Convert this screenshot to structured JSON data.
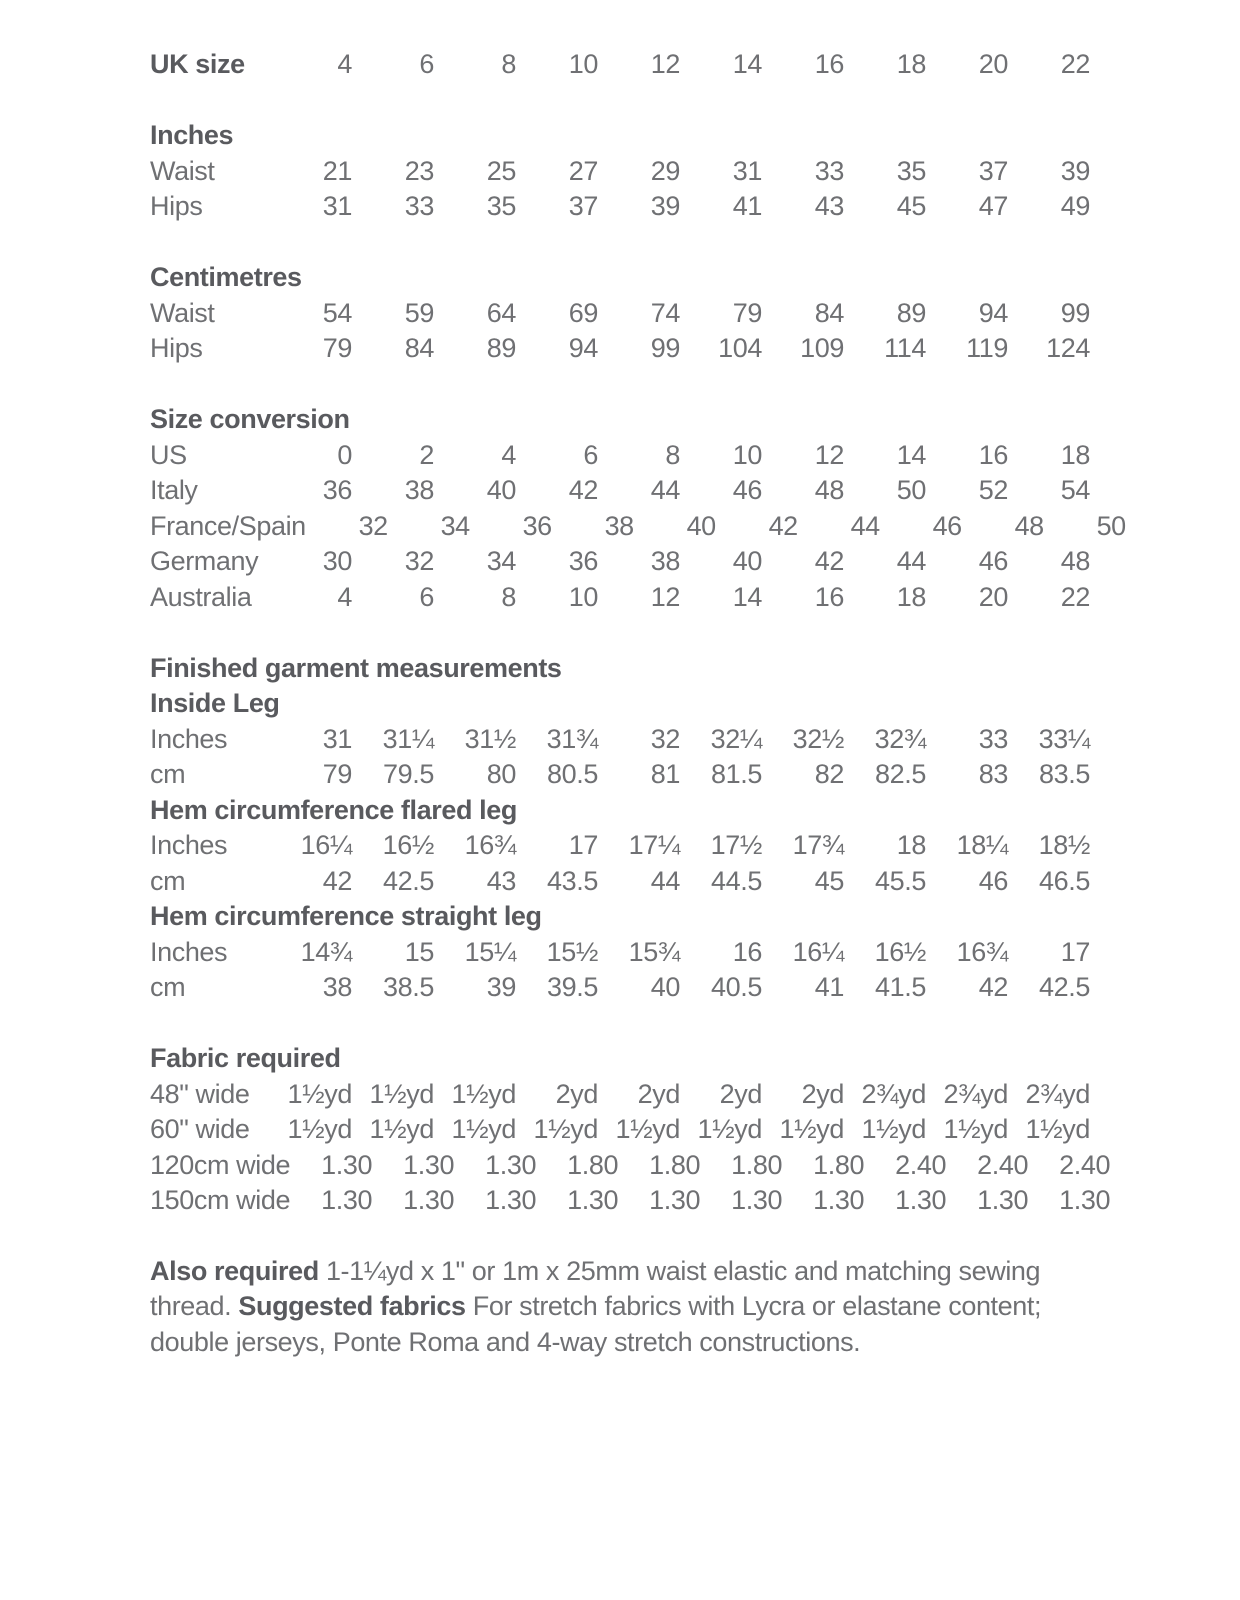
{
  "page": {
    "background_color": "#ffffff",
    "text_color": "#6f7073",
    "heading_color": "#595a5e"
  },
  "size_chart": {
    "columns": 10,
    "rows": [
      {
        "kind": "values",
        "label": "UK size",
        "bold": true,
        "values": [
          "4",
          "6",
          "8",
          "10",
          "12",
          "14",
          "16",
          "18",
          "20",
          "22"
        ]
      },
      {
        "kind": "gap"
      },
      {
        "kind": "heading",
        "label": "Inches"
      },
      {
        "kind": "values",
        "label": "Waist",
        "values": [
          "21",
          "23",
          "25",
          "27",
          "29",
          "31",
          "33",
          "35",
          "37",
          "39"
        ]
      },
      {
        "kind": "values",
        "label": "Hips",
        "values": [
          "31",
          "33",
          "35",
          "37",
          "39",
          "41",
          "43",
          "45",
          "47",
          "49"
        ]
      },
      {
        "kind": "gap"
      },
      {
        "kind": "heading",
        "label": "Centimetres"
      },
      {
        "kind": "values",
        "label": "Waist",
        "values": [
          "54",
          "59",
          "64",
          "69",
          "74",
          "79",
          "84",
          "89",
          "94",
          "99"
        ]
      },
      {
        "kind": "values",
        "label": "Hips",
        "values": [
          "79",
          "84",
          "89",
          "94",
          "99",
          "104",
          "109",
          "114",
          "119",
          "124"
        ]
      },
      {
        "kind": "gap"
      },
      {
        "kind": "heading",
        "label": "Size conversion"
      },
      {
        "kind": "values",
        "label": "US",
        "values": [
          "0",
          "2",
          "4",
          "6",
          "8",
          "10",
          "12",
          "14",
          "16",
          "18"
        ]
      },
      {
        "kind": "values",
        "label": "Italy",
        "values": [
          "36",
          "38",
          "40",
          "42",
          "44",
          "46",
          "48",
          "50",
          "52",
          "54"
        ]
      },
      {
        "kind": "values",
        "label": "France/Spain",
        "values": [
          "32",
          "34",
          "36",
          "38",
          "40",
          "42",
          "44",
          "46",
          "48",
          "50"
        ]
      },
      {
        "kind": "values",
        "label": "Germany",
        "values": [
          "30",
          "32",
          "34",
          "36",
          "38",
          "40",
          "42",
          "44",
          "46",
          "48"
        ]
      },
      {
        "kind": "values",
        "label": "Australia",
        "values": [
          "4",
          "6",
          "8",
          "10",
          "12",
          "14",
          "16",
          "18",
          "20",
          "22"
        ]
      },
      {
        "kind": "gap"
      },
      {
        "kind": "heading",
        "label": "Finished garment measurements"
      },
      {
        "kind": "heading",
        "label": "Inside Leg"
      },
      {
        "kind": "values",
        "label": "Inches",
        "values": [
          "31",
          "31¼",
          "31½",
          "31¾",
          "32",
          "32¼",
          "32½",
          "32¾",
          "33",
          "33¼"
        ]
      },
      {
        "kind": "values",
        "label": "cm",
        "values": [
          "79",
          "79.5",
          "80",
          "80.5",
          "81",
          "81.5",
          "82",
          "82.5",
          "83",
          "83.5"
        ]
      },
      {
        "kind": "heading",
        "label": "Hem circumference flared leg"
      },
      {
        "kind": "values",
        "label": "Inches",
        "values": [
          "16¼",
          "16½",
          "16¾",
          "17",
          "17¼",
          "17½",
          "17¾",
          "18",
          "18¼",
          "18½"
        ]
      },
      {
        "kind": "values",
        "label": "cm",
        "values": [
          "42",
          "42.5",
          "43",
          "43.5",
          "44",
          "44.5",
          "45",
          "45.5",
          "46",
          "46.5"
        ]
      },
      {
        "kind": "heading",
        "label": "Hem circumference straight leg"
      },
      {
        "kind": "values",
        "label": "Inches",
        "values": [
          "14¾",
          "15",
          "15¼",
          "15½",
          "15¾",
          "16",
          "16¼",
          "16½",
          "16¾",
          "17"
        ]
      },
      {
        "kind": "values",
        "label": "cm",
        "values": [
          "38",
          "38.5",
          "39",
          "39.5",
          "40",
          "40.5",
          "41",
          "41.5",
          "42",
          "42.5"
        ]
      },
      {
        "kind": "gap"
      },
      {
        "kind": "heading",
        "label": "Fabric required"
      },
      {
        "kind": "values",
        "label": "48\" wide",
        "values": [
          "1½yd",
          "1½yd",
          "1½yd",
          "2yd",
          "2yd",
          "2yd",
          "2yd",
          "2¾yd",
          "2¾yd",
          "2¾yd"
        ]
      },
      {
        "kind": "values",
        "label": "60\" wide",
        "values": [
          "1½yd",
          "1½yd",
          "1½yd",
          "1½yd",
          "1½yd",
          "1½yd",
          "1½yd",
          "1½yd",
          "1½yd",
          "1½yd"
        ]
      },
      {
        "kind": "values",
        "label": "120cm wide",
        "values": [
          "1.30",
          "1.30",
          "1.30",
          "1.80",
          "1.80",
          "1.80",
          "1.80",
          "2.40",
          "2.40",
          "2.40"
        ]
      },
      {
        "kind": "values",
        "label": "150cm wide",
        "values": [
          "1.30",
          "1.30",
          "1.30",
          "1.30",
          "1.30",
          "1.30",
          "1.30",
          "1.30",
          "1.30",
          "1.30"
        ]
      }
    ]
  },
  "notes": {
    "also_required_label": "Also required",
    "also_required_text": " 1-1¼yd x 1\" or 1m x 25mm waist elastic and matching sewing thread. ",
    "suggested_fabrics_label": "Suggested fabrics",
    "suggested_fabrics_text": " For stretch fabrics with Lycra or elastane content; double jerseys, Ponte Roma and 4-way stretch constructions."
  }
}
